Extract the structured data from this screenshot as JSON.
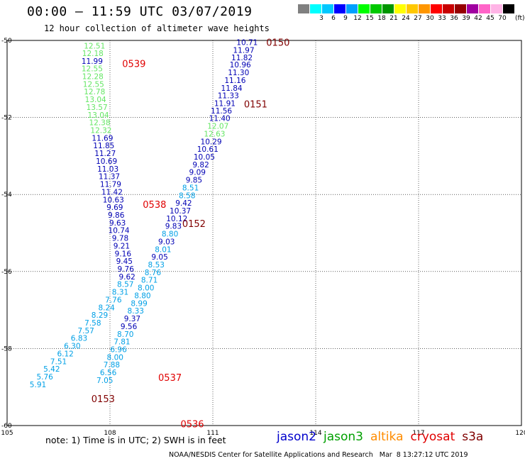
{
  "header": {
    "title": "00:00 – 11:59 UTC 03/07/2019",
    "subtitle": "12 hour collection of altimeter wave heights"
  },
  "color_scale": {
    "unit": "(ft)",
    "bins": [
      {
        "label": "",
        "color": "#808080"
      },
      {
        "label": "3",
        "color": "#00ffff"
      },
      {
        "label": "6",
        "color": "#00c8ff"
      },
      {
        "label": "9",
        "color": "#0000ff"
      },
      {
        "label": "12",
        "color": "#00a0ff"
      },
      {
        "label": "15",
        "color": "#00ff00"
      },
      {
        "label": "18",
        "color": "#00c800"
      },
      {
        "label": "21",
        "color": "#009600"
      },
      {
        "label": "24",
        "color": "#ffff00"
      },
      {
        "label": "27",
        "color": "#ffc800"
      },
      {
        "label": "30",
        "color": "#ff9600"
      },
      {
        "label": "33",
        "color": "#ff0000"
      },
      {
        "label": "36",
        "color": "#c80000"
      },
      {
        "label": "39",
        "color": "#960000"
      },
      {
        "label": "42",
        "color": "#a000a0"
      },
      {
        "label": "45",
        "color": "#ff64c8"
      },
      {
        "label": "70",
        "color": "#ffb4e6"
      },
      {
        "label": "",
        "color": "#000000"
      }
    ]
  },
  "note": "note: 1) Time is in UTC; 2) SWH is in feet",
  "credit": "NOAA/NESDIS Center for Satellite Applications and Research   Mar  8 13:27:12 UTC 2019",
  "legend": [
    {
      "name": "jason2",
      "color": "#0000cc"
    },
    {
      "name": "jason3",
      "color": "#00a000"
    },
    {
      "name": "altika",
      "color": "#ff8c00"
    },
    {
      "name": "cryosat",
      "color": "#e00000"
    },
    {
      "name": "s3a",
      "color": "#800000"
    }
  ],
  "colors": {
    "blue": "#0000b4",
    "cyan": "#00a0e6",
    "green": "#64e664",
    "red": "#e00000",
    "maroon": "#800000"
  },
  "chart_data": {
    "type": "scatter",
    "xlabel": "",
    "ylabel": "",
    "xlim": [
      105,
      120
    ],
    "ylim": [
      -60,
      -50
    ],
    "xticks": [
      105,
      108,
      111,
      114,
      117,
      120
    ],
    "yticks": [
      -50,
      -52,
      -54,
      -56,
      -58,
      -60
    ],
    "grid": true,
    "series": [
      {
        "name": "jason2",
        "points": [
          {
            "x": 112.0,
            "y": -50.05,
            "v": "10.71",
            "c": "blue"
          },
          {
            "x": 111.9,
            "y": -50.25,
            "v": "11.97",
            "c": "blue"
          },
          {
            "x": 111.85,
            "y": -50.44,
            "v": "11.82",
            "c": "blue"
          },
          {
            "x": 111.8,
            "y": -50.63,
            "v": "10.96",
            "c": "blue"
          },
          {
            "x": 111.75,
            "y": -50.83,
            "v": "11.30",
            "c": "blue"
          },
          {
            "x": 111.65,
            "y": -51.03,
            "v": "11.16",
            "c": "blue"
          },
          {
            "x": 111.55,
            "y": -51.23,
            "v": "11.84",
            "c": "blue"
          },
          {
            "x": 111.45,
            "y": -51.43,
            "v": "11.33",
            "c": "blue"
          },
          {
            "x": 111.35,
            "y": -51.63,
            "v": "11.91",
            "c": "blue"
          },
          {
            "x": 111.25,
            "y": -51.82,
            "v": "11.56",
            "c": "blue"
          },
          {
            "x": 111.2,
            "y": -52.02,
            "v": "11.40",
            "c": "blue"
          },
          {
            "x": 111.15,
            "y": -52.22,
            "v": "12.07",
            "c": "green"
          },
          {
            "x": 111.05,
            "y": -52.42,
            "v": "12.63",
            "c": "green"
          },
          {
            "x": 110.95,
            "y": -52.62,
            "v": "10.29",
            "c": "blue"
          },
          {
            "x": 110.85,
            "y": -52.82,
            "v": "10.61",
            "c": "blue"
          },
          {
            "x": 110.75,
            "y": -53.02,
            "v": "10.05",
            "c": "blue"
          },
          {
            "x": 110.65,
            "y": -53.22,
            "v": "9.82",
            "c": "blue"
          },
          {
            "x": 110.55,
            "y": -53.42,
            "v": "9.09",
            "c": "blue"
          },
          {
            "x": 110.45,
            "y": -53.62,
            "v": "9.85",
            "c": "blue"
          },
          {
            "x": 110.35,
            "y": -53.82,
            "v": "8.51",
            "c": "cyan"
          },
          {
            "x": 110.25,
            "y": -54.02,
            "v": "8.58",
            "c": "cyan"
          },
          {
            "x": 110.15,
            "y": -54.22,
            "v": "9.42",
            "c": "blue"
          },
          {
            "x": 110.05,
            "y": -54.42,
            "v": "10.37",
            "c": "blue"
          },
          {
            "x": 109.95,
            "y": -54.62,
            "v": "10.12",
            "c": "blue"
          },
          {
            "x": 109.85,
            "y": -54.82,
            "v": "9.83",
            "c": "blue"
          },
          {
            "x": 109.75,
            "y": -55.02,
            "v": "8.80",
            "c": "cyan"
          },
          {
            "x": 109.65,
            "y": -55.22,
            "v": "9.03",
            "c": "blue"
          },
          {
            "x": 109.55,
            "y": -55.42,
            "v": "8.01",
            "c": "cyan"
          },
          {
            "x": 109.45,
            "y": -55.62,
            "v": "9.05",
            "c": "blue"
          },
          {
            "x": 109.35,
            "y": -55.82,
            "v": "8.53",
            "c": "cyan"
          },
          {
            "x": 109.25,
            "y": -56.02,
            "v": "8.76",
            "c": "cyan"
          },
          {
            "x": 109.15,
            "y": -56.22,
            "v": "8.71",
            "c": "cyan"
          },
          {
            "x": 109.05,
            "y": -56.42,
            "v": "8.00",
            "c": "cyan"
          },
          {
            "x": 108.95,
            "y": -56.62,
            "v": "8.80",
            "c": "cyan"
          },
          {
            "x": 108.85,
            "y": -56.82,
            "v": "8.99",
            "c": "cyan"
          },
          {
            "x": 108.75,
            "y": -57.02,
            "v": "8.33",
            "c": "cyan"
          },
          {
            "x": 108.65,
            "y": -57.22,
            "v": "9.37",
            "c": "blue"
          },
          {
            "x": 108.55,
            "y": -57.42,
            "v": "9.56",
            "c": "blue"
          },
          {
            "x": 108.45,
            "y": -57.62,
            "v": "8.70",
            "c": "cyan"
          },
          {
            "x": 108.35,
            "y": -57.82,
            "v": "7.81",
            "c": "cyan"
          },
          {
            "x": 108.25,
            "y": -58.02,
            "v": "6.96",
            "c": "cyan"
          },
          {
            "x": 108.15,
            "y": -58.22,
            "v": "8.00",
            "c": "cyan"
          },
          {
            "x": 108.05,
            "y": -58.42,
            "v": "7.88",
            "c": "cyan"
          },
          {
            "x": 107.95,
            "y": -58.62,
            "v": "6.56",
            "c": "cyan"
          },
          {
            "x": 107.85,
            "y": -58.82,
            "v": "7.05",
            "c": "cyan"
          }
        ]
      },
      {
        "name": "jason3",
        "points": [
          {
            "x": 107.55,
            "y": -50.14,
            "v": "12.51",
            "c": "green"
          },
          {
            "x": 107.5,
            "y": -50.33,
            "v": "12.18",
            "c": "green"
          },
          {
            "x": 107.48,
            "y": -50.53,
            "v": "11.99",
            "c": "blue"
          },
          {
            "x": 107.48,
            "y": -50.73,
            "v": "12.55",
            "c": "green"
          },
          {
            "x": 107.5,
            "y": -50.93,
            "v": "12.28",
            "c": "green"
          },
          {
            "x": 107.52,
            "y": -51.13,
            "v": "12.55",
            "c": "green"
          },
          {
            "x": 107.55,
            "y": -51.33,
            "v": "12.78",
            "c": "green"
          },
          {
            "x": 107.58,
            "y": -51.53,
            "v": "13.04",
            "c": "green"
          },
          {
            "x": 107.62,
            "y": -51.73,
            "v": "13.57",
            "c": "green"
          },
          {
            "x": 107.66,
            "y": -51.93,
            "v": "13.04",
            "c": "green"
          },
          {
            "x": 107.7,
            "y": -52.13,
            "v": "12.38",
            "c": "green"
          },
          {
            "x": 107.74,
            "y": -52.33,
            "v": "12.32",
            "c": "green"
          },
          {
            "x": 107.78,
            "y": -52.53,
            "v": "11.69",
            "c": "blue"
          },
          {
            "x": 107.82,
            "y": -52.73,
            "v": "11.85",
            "c": "blue"
          },
          {
            "x": 107.86,
            "y": -52.93,
            "v": "11.27",
            "c": "blue"
          },
          {
            "x": 107.9,
            "y": -53.13,
            "v": "10.69",
            "c": "blue"
          },
          {
            "x": 107.94,
            "y": -53.33,
            "v": "11.03",
            "c": "blue"
          },
          {
            "x": 107.98,
            "y": -53.53,
            "v": "11.37",
            "c": "blue"
          },
          {
            "x": 108.02,
            "y": -53.73,
            "v": "11.79",
            "c": "blue"
          },
          {
            "x": 108.06,
            "y": -53.93,
            "v": "11.42",
            "c": "blue"
          },
          {
            "x": 108.1,
            "y": -54.13,
            "v": "10.63",
            "c": "blue"
          },
          {
            "x": 108.14,
            "y": -54.33,
            "v": "9.69",
            "c": "blue"
          },
          {
            "x": 108.18,
            "y": -54.53,
            "v": "9.86",
            "c": "blue"
          },
          {
            "x": 108.22,
            "y": -54.73,
            "v": "9.63",
            "c": "blue"
          },
          {
            "x": 108.26,
            "y": -54.93,
            "v": "10.74",
            "c": "blue"
          },
          {
            "x": 108.3,
            "y": -55.13,
            "v": "9.78",
            "c": "blue"
          },
          {
            "x": 108.34,
            "y": -55.33,
            "v": "9.21",
            "c": "blue"
          },
          {
            "x": 108.38,
            "y": -55.53,
            "v": "9.16",
            "c": "blue"
          },
          {
            "x": 108.42,
            "y": -55.73,
            "v": "9.45",
            "c": "blue"
          },
          {
            "x": 108.46,
            "y": -55.93,
            "v": "9.76",
            "c": "blue"
          },
          {
            "x": 108.5,
            "y": -56.13,
            "v": "9.62",
            "c": "blue"
          },
          {
            "x": 108.45,
            "y": -56.33,
            "v": "8.57",
            "c": "cyan"
          },
          {
            "x": 108.3,
            "y": -56.53,
            "v": "8.31",
            "c": "cyan"
          },
          {
            "x": 108.1,
            "y": -56.73,
            "v": "7.76",
            "c": "cyan"
          },
          {
            "x": 107.9,
            "y": -56.93,
            "v": "8.24",
            "c": "cyan"
          },
          {
            "x": 107.7,
            "y": -57.13,
            "v": "8.29",
            "c": "cyan"
          },
          {
            "x": 107.5,
            "y": -57.33,
            "v": "7.58",
            "c": "cyan"
          },
          {
            "x": 107.3,
            "y": -57.53,
            "v": "7.57",
            "c": "cyan"
          },
          {
            "x": 107.1,
            "y": -57.73,
            "v": "6.83",
            "c": "cyan"
          },
          {
            "x": 106.9,
            "y": -57.93,
            "v": "6.30",
            "c": "cyan"
          },
          {
            "x": 106.7,
            "y": -58.13,
            "v": "6.12",
            "c": "cyan"
          },
          {
            "x": 106.5,
            "y": -58.33,
            "v": "7.51",
            "c": "cyan"
          },
          {
            "x": 106.3,
            "y": -58.53,
            "v": "5.42",
            "c": "cyan"
          },
          {
            "x": 106.1,
            "y": -58.73,
            "v": "5.76",
            "c": "cyan"
          },
          {
            "x": 105.9,
            "y": -58.93,
            "v": "5.91",
            "c": "cyan"
          }
        ]
      }
    ],
    "annotations": [
      {
        "x": 112.9,
        "y": -50.05,
        "text": "0150",
        "c": "maroon"
      },
      {
        "x": 112.25,
        "y": -51.65,
        "text": "0151",
        "c": "maroon"
      },
      {
        "x": 110.45,
        "y": -54.75,
        "text": "0152",
        "c": "maroon"
      },
      {
        "x": 107.8,
        "y": -59.3,
        "text": "0153",
        "c": "maroon"
      },
      {
        "x": 108.7,
        "y": -50.6,
        "text": "0539",
        "c": "red"
      },
      {
        "x": 109.3,
        "y": -54.25,
        "text": "0538",
        "c": "red"
      },
      {
        "x": 109.75,
        "y": -58.75,
        "text": "0537",
        "c": "red"
      },
      {
        "x": 110.4,
        "y": -59.95,
        "text": "0536",
        "c": "red"
      }
    ]
  }
}
